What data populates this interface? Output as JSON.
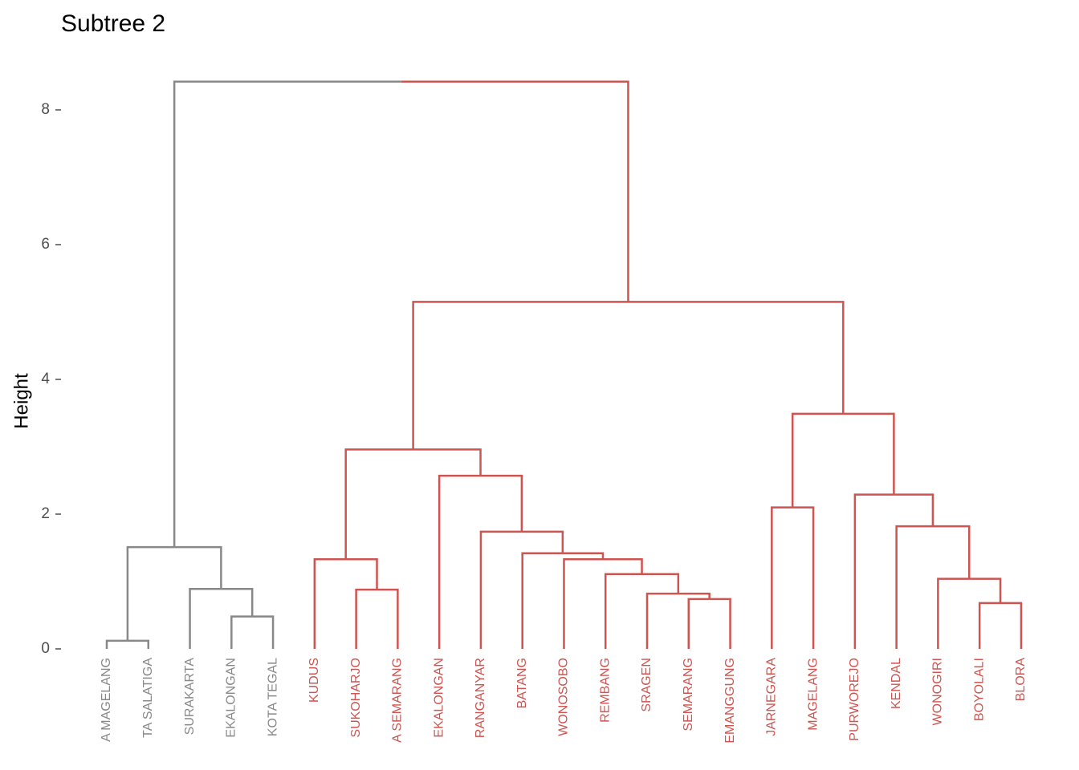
{
  "chart_data": {
    "type": "dendrogram",
    "title": "Subtree 2",
    "y_label": "Height",
    "labels": [
      "A MAGELANG",
      "TA SALATIGA",
      "SURAKARTA",
      "EKALONGAN",
      "KOTA TEGAL",
      "KUDUS",
      "SUKOHARJO",
      "A SEMARANG",
      "EKALONGAN",
      "RANGANYAR",
      "BATANG",
      "WONOSOBO",
      "REMBANG",
      "SRAGEN",
      "SEMARANG",
      "EMANGGUNG",
      "JARNEGARA",
      "MAGELANG",
      "PURWOREJO",
      "KENDAL",
      "WONOGIRI",
      "BOYOLALI",
      "BLORA"
    ],
    "colors": [
      "#888888",
      "#888888",
      "#888888",
      "#888888",
      "#888888",
      "#cd5450",
      "#cd5450",
      "#cd5450",
      "#cd5450",
      "#cd5450",
      "#cd5450",
      "#cd5450",
      "#cd5450",
      "#cd5450",
      "#cd5450",
      "#cd5450",
      "#cd5450",
      "#cd5450",
      "#cd5450",
      "#cd5450",
      "#cd5450",
      "#cd5450",
      "#cd5450"
    ],
    "merges": [
      {
        "left": -1,
        "right": -2,
        "height": 0.12
      },
      {
        "left": -4,
        "right": -5,
        "height": 0.48
      },
      {
        "left": -22,
        "right": -23,
        "height": 0.68
      },
      {
        "left": -15,
        "right": -16,
        "height": 0.74
      },
      {
        "left": -14,
        "right": 4,
        "height": 0.82
      },
      {
        "left": -7,
        "right": -8,
        "height": 0.88
      },
      {
        "left": -3,
        "right": 2,
        "height": 0.89
      },
      {
        "left": -21,
        "right": 3,
        "height": 1.04
      },
      {
        "left": -13,
        "right": 5,
        "height": 1.11
      },
      {
        "left": -6,
        "right": 6,
        "height": 1.33
      },
      {
        "left": -12,
        "right": 9,
        "height": 1.33
      },
      {
        "left": -11,
        "right": 11,
        "height": 1.42
      },
      {
        "left": 1,
        "right": 7,
        "height": 1.51
      },
      {
        "left": -10,
        "right": 12,
        "height": 1.74
      },
      {
        "left": -20,
        "right": 8,
        "height": 1.82
      },
      {
        "left": -17,
        "right": -18,
        "height": 2.1
      },
      {
        "left": -19,
        "right": 15,
        "height": 2.29
      },
      {
        "left": -9,
        "right": 14,
        "height": 2.57
      },
      {
        "left": 10,
        "right": 18,
        "height": 2.96
      },
      {
        "left": 16,
        "right": 17,
        "height": 3.49
      },
      {
        "left": 19,
        "right": 20,
        "height": 5.15
      },
      {
        "left": 13,
        "right": 21,
        "height": 8.42
      }
    ],
    "ylim": [
      0,
      8.5
    ],
    "yticks": [
      0,
      2,
      4,
      6,
      8
    ]
  }
}
